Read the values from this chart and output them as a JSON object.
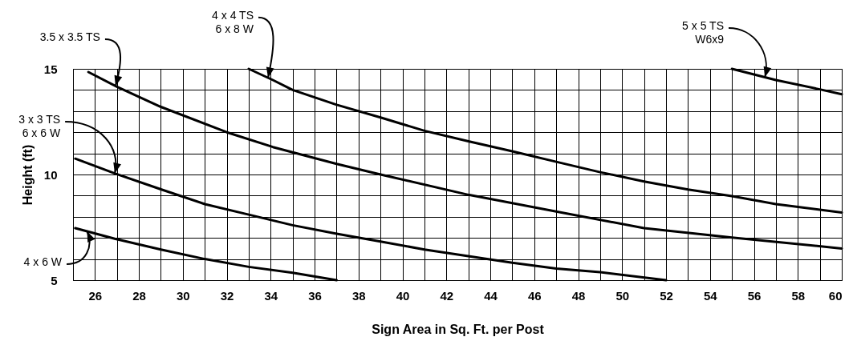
{
  "chart_data": {
    "type": "line",
    "xlabel": "Sign Area in Sq. Ft. per Post",
    "ylabel": "Height (ft)",
    "xlim": [
      25,
      60
    ],
    "ylim": [
      5,
      15
    ],
    "xticks": [
      {
        "value": 25,
        "label": null
      },
      26,
      {
        "value": 27,
        "label": null
      },
      28,
      {
        "value": 29,
        "label": null
      },
      30,
      {
        "value": 31,
        "label": null
      },
      32,
      {
        "value": 33,
        "label": null
      },
      34,
      {
        "value": 35,
        "label": null
      },
      36,
      {
        "value": 37,
        "label": null
      },
      38,
      {
        "value": 39,
        "label": null
      },
      40,
      {
        "value": 41,
        "label": null
      },
      42,
      {
        "value": 43,
        "label": null
      },
      44,
      {
        "value": 45,
        "label": null
      },
      46,
      {
        "value": 47,
        "label": null
      },
      48,
      {
        "value": 49,
        "label": null
      },
      50,
      {
        "value": 51,
        "label": null
      },
      52,
      {
        "value": 53,
        "label": null
      },
      54,
      {
        "value": 55,
        "label": null
      },
      56,
      {
        "value": 57,
        "label": null
      },
      58,
      {
        "value": 59,
        "label": null
      },
      60
    ],
    "yticks": [
      5,
      {
        "value": 6,
        "label": null
      },
      {
        "value": 7,
        "label": null
      },
      {
        "value": 8,
        "label": null
      },
      {
        "value": 9,
        "label": null
      },
      10,
      {
        "value": 11,
        "label": null
      },
      {
        "value": 12,
        "label": null
      },
      {
        "value": 13,
        "label": null
      },
      {
        "value": 14,
        "label": null
      },
      15
    ],
    "grid": true,
    "marker": "none",
    "line_style": "solid",
    "series": [
      {
        "name": "3.5 x 3.5 TS",
        "color": "#000000",
        "x": [
          25.7,
          27,
          29,
          32,
          34.1,
          37,
          39,
          43,
          47,
          51,
          55,
          60
        ],
        "values": [
          14.85,
          14.15,
          13.2,
          12.0,
          11.3,
          10.5,
          10.0,
          9.04,
          8.25,
          7.46,
          7.02,
          6.5
        ]
      },
      {
        "name": "4 x 4 TS\n6 x 8 W",
        "color": "#000000",
        "x": [
          33,
          34.1,
          35,
          37,
          39,
          41,
          43,
          45,
          47,
          49,
          51,
          53,
          55,
          57,
          60
        ],
        "values": [
          15,
          14.47,
          14.0,
          13.3,
          12.7,
          12.07,
          11.57,
          11.1,
          10.6,
          10.11,
          9.67,
          9.29,
          8.98,
          8.6,
          8.2
        ]
      },
      {
        "name": "3 x 3 TS\n6 x 6 W",
        "color": "#000000",
        "x": [
          25.1,
          26.9,
          29,
          31,
          33,
          35,
          37,
          39,
          41,
          43,
          45,
          47,
          49,
          52
        ],
        "values": [
          10.75,
          10.05,
          9.3,
          8.6,
          8.1,
          7.6,
          7.2,
          6.83,
          6.45,
          6.14,
          5.82,
          5.55,
          5.38,
          5.0
        ]
      },
      {
        "name": "4 x 6 W",
        "color": "#000000",
        "x": [
          25.1,
          26.9,
          29,
          31,
          33,
          35,
          37
        ],
        "values": [
          7.46,
          6.96,
          6.45,
          6.0,
          5.63,
          5.35,
          5.0
        ]
      },
      {
        "name": "5 x 5 TS\nW6x9",
        "color": "#000000",
        "x": [
          55,
          57,
          59,
          60
        ],
        "values": [
          15,
          14.47,
          14.03,
          13.8
        ]
      }
    ]
  }
}
